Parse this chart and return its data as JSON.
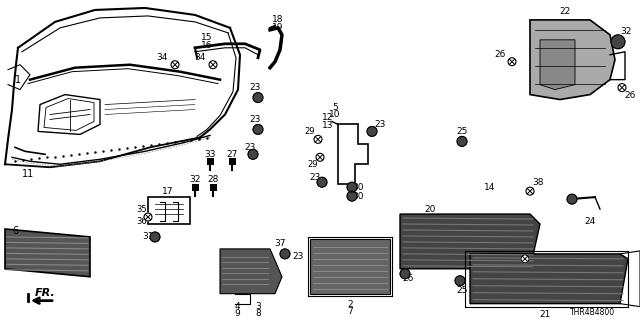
{
  "background_color": "#ffffff",
  "diagram_code": "THR4B4800",
  "figsize": [
    6.4,
    3.2
  ],
  "dpi": 100
}
